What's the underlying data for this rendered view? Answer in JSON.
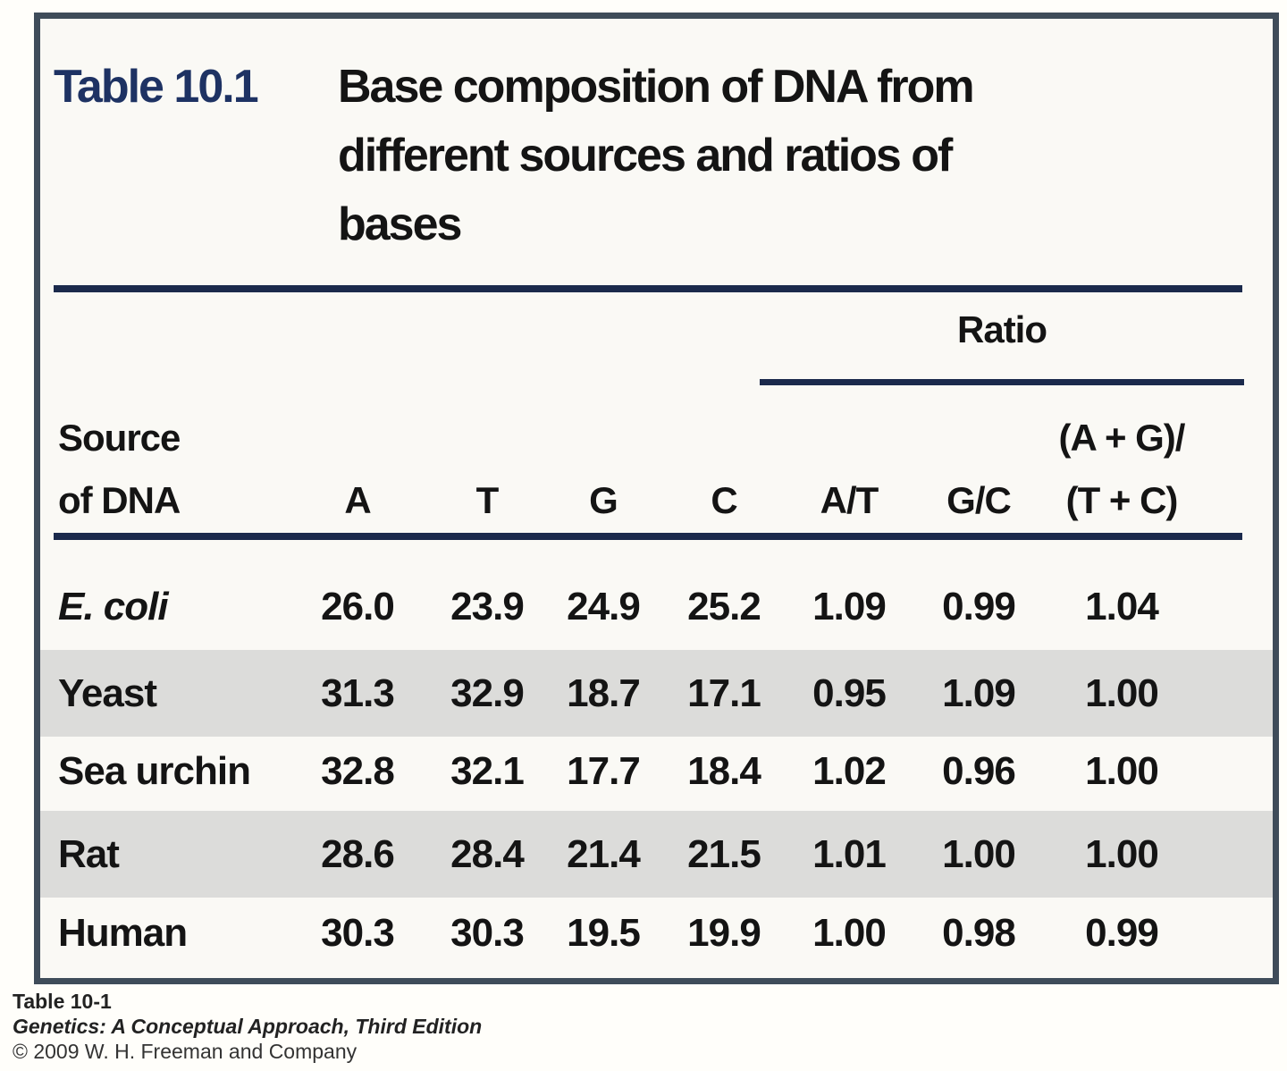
{
  "title": {
    "label": "Table 10.1",
    "lines": [
      "Base composition of DNA from",
      "different sources and ratios of",
      "bases"
    ]
  },
  "table": {
    "ratio_group_label": "Ratio",
    "source_header_lines": [
      "Source",
      "of DNA"
    ],
    "columns": [
      "A",
      "T",
      "G",
      "C",
      "A/T",
      "G/C"
    ],
    "last_column_lines": [
      "(A + G)/",
      "(T + C)"
    ],
    "rows": [
      {
        "source": "E. coli",
        "italic": true,
        "values": [
          "26.0",
          "23.9",
          "24.9",
          "25.2",
          "1.09",
          "0.99",
          "1.04"
        ]
      },
      {
        "source": "Yeast",
        "italic": false,
        "values": [
          "31.3",
          "32.9",
          "18.7",
          "17.1",
          "0.95",
          "1.09",
          "1.00"
        ]
      },
      {
        "source": "Sea urchin",
        "italic": false,
        "values": [
          "32.8",
          "32.1",
          "17.7",
          "18.4",
          "1.02",
          "0.96",
          "1.00"
        ]
      },
      {
        "source": "Rat",
        "italic": false,
        "values": [
          "28.6",
          "28.4",
          "21.4",
          "21.5",
          "1.01",
          "1.00",
          "1.00"
        ]
      },
      {
        "source": "Human",
        "italic": false,
        "values": [
          "30.3",
          "30.3",
          "19.5",
          "19.9",
          "1.00",
          "0.98",
          "0.99"
        ]
      }
    ]
  },
  "footer": {
    "figure_label": "Table 10-1",
    "book_title": "Genetics: A Conceptual Approach, Third Edition",
    "copyright": "© 2009 W. H. Freeman and Company"
  },
  "colors": {
    "rule_navy": "#1b2a4c",
    "title_navy": "#1e3263",
    "frame_border": "#3f4c5a",
    "stripe_gray": "#dcdcda",
    "frame_background": "#faf9f5"
  },
  "chart_data": {
    "type": "table",
    "title": "Table 10.1 Base composition of DNA from different sources and ratios of bases",
    "columns": [
      "Source of DNA",
      "A",
      "T",
      "G",
      "C",
      "A/T",
      "G/C",
      "(A + G)/(T + C)"
    ],
    "rows": [
      [
        "E. coli",
        26.0,
        23.9,
        24.9,
        25.2,
        1.09,
        0.99,
        1.04
      ],
      [
        "Yeast",
        31.3,
        32.9,
        18.7,
        17.1,
        0.95,
        1.09,
        1.0
      ],
      [
        "Sea urchin",
        32.8,
        32.1,
        17.7,
        18.4,
        1.02,
        0.96,
        1.0
      ],
      [
        "Rat",
        28.6,
        28.4,
        21.4,
        21.5,
        1.01,
        1.0,
        1.0
      ],
      [
        "Human",
        30.3,
        30.3,
        19.5,
        19.9,
        1.0,
        0.98,
        0.99
      ]
    ]
  }
}
